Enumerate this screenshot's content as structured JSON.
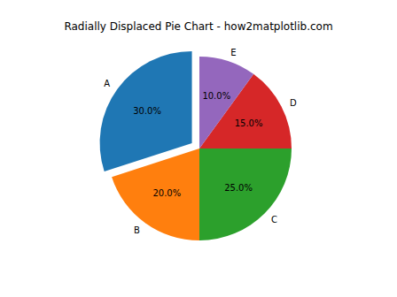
{
  "chart_data": {
    "type": "pie",
    "title": "Radially Displaced Pie Chart - how2matplotlib.com",
    "categories": [
      "A",
      "B",
      "C",
      "D",
      "E"
    ],
    "values": [
      30,
      20,
      25,
      15,
      10
    ],
    "value_labels": [
      "30.0%",
      "20.0%",
      "25.0%",
      "15.0%",
      "10.0%"
    ],
    "colors": [
      "#1f77b4",
      "#ff7f0e",
      "#2ca02c",
      "#d62728",
      "#9467bd"
    ],
    "data_labels": true
  }
}
